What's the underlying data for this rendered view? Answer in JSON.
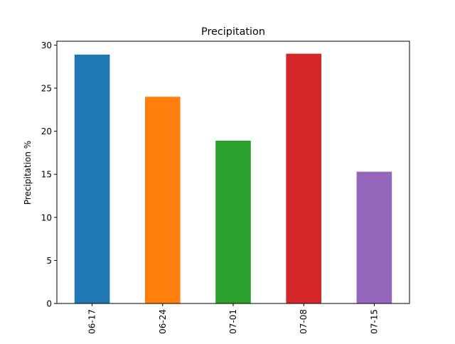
{
  "chart_data": {
    "type": "bar",
    "title": "Precipitation",
    "xlabel": "",
    "ylabel": "Precipitation %",
    "categories": [
      "06-17",
      "06-24",
      "07-01",
      "07-08",
      "07-15"
    ],
    "values": [
      28.9,
      24.0,
      18.9,
      29.0,
      15.3
    ],
    "colors": [
      "#1f77b4",
      "#ff7f0e",
      "#2ca02c",
      "#d62728",
      "#9467bd"
    ],
    "ylim": [
      0,
      30.45
    ],
    "yticks": [
      0,
      5,
      10,
      15,
      20,
      25,
      30
    ],
    "grid": false,
    "legend": "none"
  }
}
